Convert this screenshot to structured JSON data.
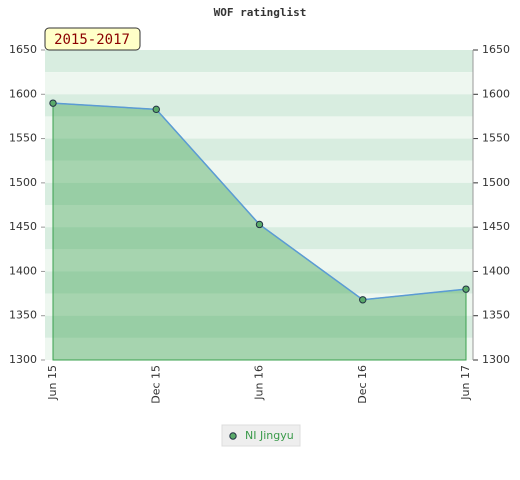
{
  "chart_data": {
    "type": "area",
    "title": "WOF ratinglist",
    "annotation": "2015-2017",
    "categories": [
      "Jun 15",
      "Dec 15",
      "Jun 16",
      "Dec 16",
      "Jun 17"
    ],
    "series": [
      {
        "name": "NI Jingyu",
        "color": "#5b9bd5",
        "fill": "#3aa04e",
        "values": [
          1590,
          1583,
          1453,
          1368,
          1380
        ]
      }
    ],
    "ylim": [
      1300,
      1650
    ],
    "yticks": [
      1300,
      1350,
      1400,
      1450,
      1500,
      1550,
      1600,
      1650
    ],
    "y2lim": [
      1300,
      1650
    ],
    "y2ticks": [
      1300,
      1350,
      1400,
      1450,
      1500,
      1550,
      1600,
      1650
    ]
  }
}
